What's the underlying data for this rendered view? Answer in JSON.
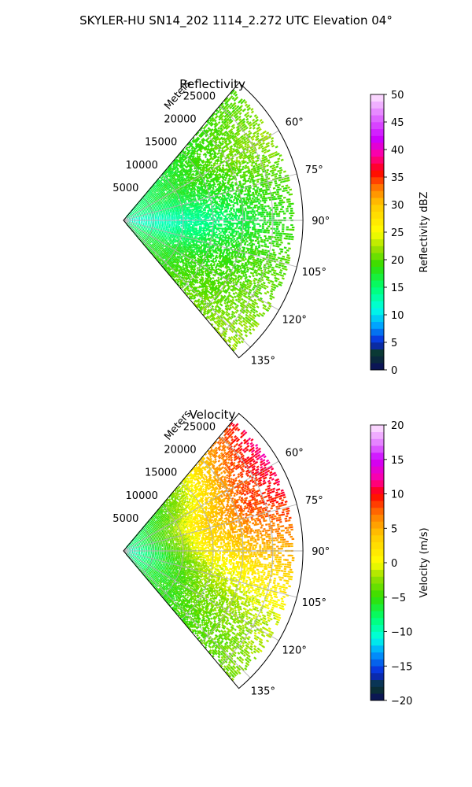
{
  "figure": {
    "title": "SKYLER-HU  SN14_202  1114_2.272 UTC Elevation 04°"
  },
  "chart_data": [
    {
      "type": "heatmap",
      "subtype": "polar-ppi-sector",
      "title": "Reflectivity",
      "range_label": "Meters",
      "range_ticks": [
        5000,
        10000,
        15000,
        20000,
        25000
      ],
      "range_max": 30000,
      "azimuth_range_deg": [
        40,
        140
      ],
      "azimuth_ticks": [
        "60°",
        "75°",
        "90°",
        "105°",
        "120°",
        "135°"
      ],
      "azimuth_tick_values": [
        60,
        75,
        90,
        105,
        120,
        135
      ],
      "colorbar": {
        "label": "Reflectivity dBZ",
        "min": 0,
        "max": 50,
        "ticks": [
          "0",
          "5",
          "10",
          "15",
          "20",
          "25",
          "30",
          "35",
          "40",
          "45",
          "50"
        ],
        "tick_values": [
          0,
          5,
          10,
          15,
          20,
          25,
          30,
          35,
          40,
          45,
          50
        ]
      },
      "colormap_stops": [
        [
          0,
          "#0b0b60"
        ],
        [
          3,
          "#0a3a2a"
        ],
        [
          5,
          "#0a24d8"
        ],
        [
          8,
          "#00a0ff"
        ],
        [
          11,
          "#00ffe6"
        ],
        [
          15,
          "#00ff70"
        ],
        [
          19,
          "#33dd00"
        ],
        [
          22,
          "#9be000"
        ],
        [
          25,
          "#ffff00"
        ],
        [
          30,
          "#ffc800"
        ],
        [
          33,
          "#ff7a00"
        ],
        [
          36,
          "#ff0000"
        ],
        [
          39,
          "#ff00a0"
        ],
        [
          42,
          "#cc00ff"
        ],
        [
          46,
          "#e070ff"
        ],
        [
          50,
          "#ffe8ff"
        ]
      ],
      "field_profile": [
        {
          "az": 40,
          "values": [
            14,
            16,
            18,
            19,
            20
          ]
        },
        {
          "az": 60,
          "values": [
            14,
            17,
            19,
            21,
            22
          ]
        },
        {
          "az": 75,
          "values": [
            13,
            15,
            17,
            19,
            20
          ]
        },
        {
          "az": 90,
          "values": [
            11,
            12,
            14,
            17,
            19
          ]
        },
        {
          "az": 105,
          "values": [
            12,
            14,
            17,
            19,
            20
          ]
        },
        {
          "az": 120,
          "values": [
            14,
            17,
            19,
            20,
            21
          ]
        },
        {
          "az": 140,
          "values": [
            15,
            18,
            20,
            21,
            22
          ]
        }
      ]
    },
    {
      "type": "heatmap",
      "subtype": "polar-ppi-sector",
      "title": "Velocity",
      "range_label": "Meters",
      "range_ticks": [
        5000,
        10000,
        15000,
        20000,
        25000
      ],
      "range_max": 30000,
      "azimuth_range_deg": [
        40,
        140
      ],
      "azimuth_ticks": [
        "60°",
        "75°",
        "90°",
        "105°",
        "120°",
        "135°"
      ],
      "azimuth_tick_values": [
        60,
        75,
        90,
        105,
        120,
        135
      ],
      "colorbar": {
        "label": "Velocity (m/s)",
        "min": -20,
        "max": 20,
        "ticks": [
          "−20",
          "−15",
          "−10",
          "−5",
          "0",
          "5",
          "10",
          "15",
          "20"
        ],
        "tick_values": [
          -20,
          -15,
          -10,
          -5,
          0,
          5,
          10,
          15,
          20
        ]
      },
      "colormap_stops": [
        [
          -20,
          "#0b0b60"
        ],
        [
          -18,
          "#0a3a2a"
        ],
        [
          -16,
          "#0a24d8"
        ],
        [
          -13,
          "#00a0ff"
        ],
        [
          -11,
          "#00ffe6"
        ],
        [
          -8,
          "#00ff70"
        ],
        [
          -5,
          "#33dd00"
        ],
        [
          -2,
          "#9be000"
        ],
        [
          0,
          "#ffff00"
        ],
        [
          4,
          "#ffc800"
        ],
        [
          7,
          "#ff7a00"
        ],
        [
          10,
          "#ff0000"
        ],
        [
          12,
          "#ff00a0"
        ],
        [
          15,
          "#cc00ff"
        ],
        [
          17,
          "#e070ff"
        ],
        [
          20,
          "#ffe8ff"
        ]
      ],
      "field_profile": [
        {
          "az": 40,
          "values": [
            -9,
            -6,
            -2,
            5,
            10
          ]
        },
        {
          "az": 55,
          "values": [
            -9,
            -5,
            0,
            7,
            12
          ]
        },
        {
          "az": 70,
          "values": [
            -10,
            -4,
            3,
            8,
            10
          ]
        },
        {
          "az": 85,
          "values": [
            -11,
            -5,
            2,
            5,
            6
          ]
        },
        {
          "az": 100,
          "values": [
            -11,
            -6,
            -1,
            1,
            3
          ]
        },
        {
          "az": 115,
          "values": [
            -10,
            -6,
            -3,
            -2,
            -1
          ]
        },
        {
          "az": 140,
          "values": [
            -9,
            -6,
            -5,
            -4,
            -3
          ]
        }
      ]
    }
  ]
}
